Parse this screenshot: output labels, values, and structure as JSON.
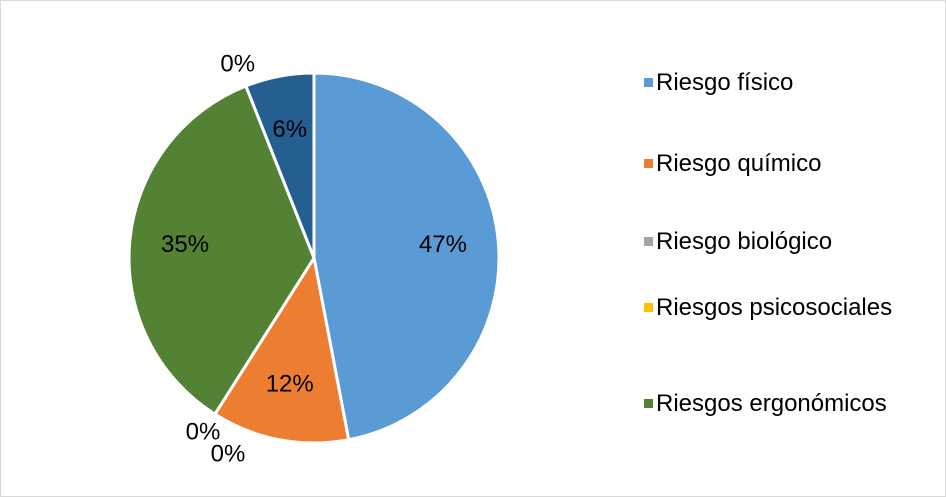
{
  "chart_data": {
    "type": "pie",
    "categories": [
      "Riesgo físico",
      "Riesgo químico",
      "Riesgo biológico",
      "Riesgos psicosociales",
      "Riesgos ergonómicos",
      null,
      null
    ],
    "values": [
      47,
      12,
      0,
      0,
      35,
      0,
      6
    ],
    "value_labels": [
      "47%",
      "12%",
      "0%",
      "0%",
      "35%",
      "0%",
      "6%"
    ],
    "colors": [
      "#5b9bd5",
      "#ed7d31",
      "#a5a5a5",
      "#ffc000",
      "#548235",
      "#4472c4",
      "#255e91"
    ],
    "legend": "right"
  }
}
